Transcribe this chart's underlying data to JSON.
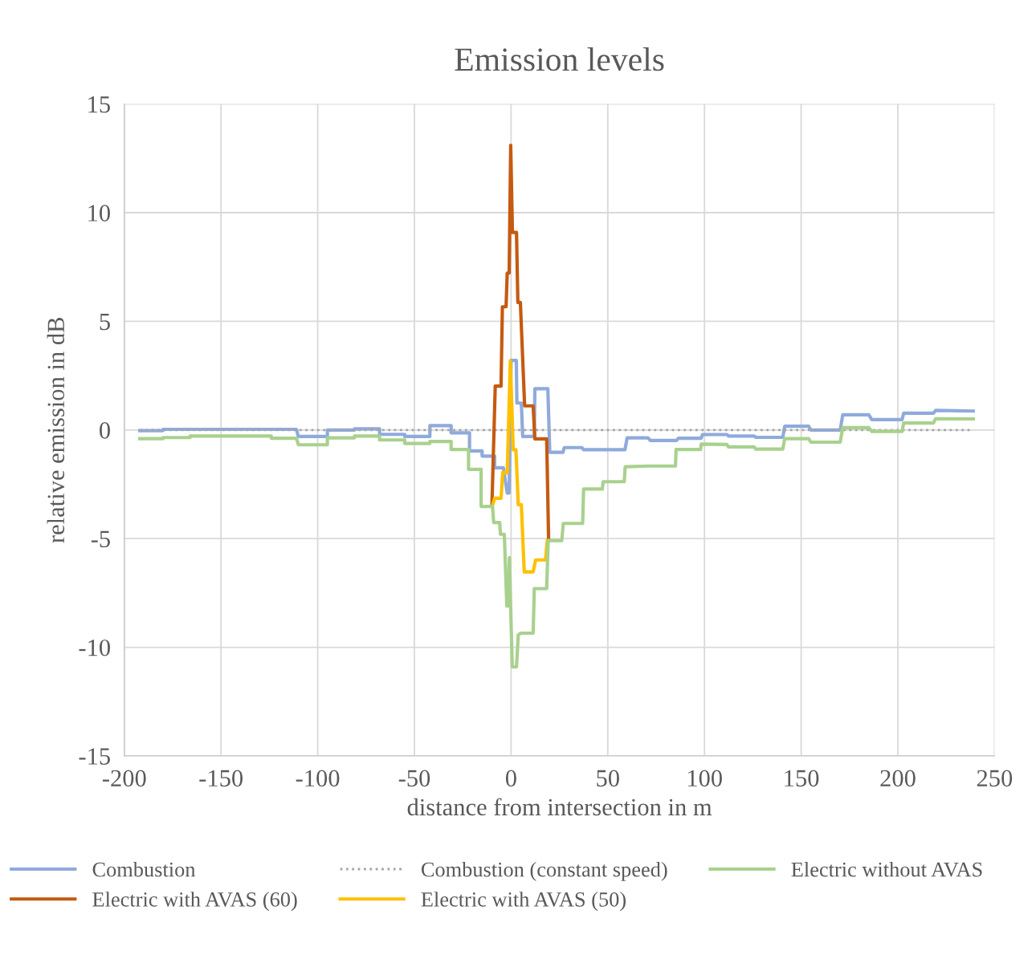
{
  "chart_data": {
    "type": "line",
    "title": "Emission levels",
    "xlabel": "distance from intersection in m",
    "ylabel": "relative emission in dB",
    "xlim": [
      -200,
      250
    ],
    "xticks": [
      -200,
      -150,
      -100,
      -50,
      0,
      50,
      100,
      150,
      200,
      250
    ],
    "ylim": [
      -15,
      15
    ],
    "yticks": [
      -15,
      -10,
      -5,
      0,
      5,
      10,
      15
    ],
    "grid": true,
    "legend": "bottom",
    "marker": "none",
    "series": [
      {
        "name": "Combustion",
        "color": "#8faadc",
        "line_style": "solid",
        "x": [
          -192,
          -180,
          -180,
          -111,
          -110,
          -95,
          -95,
          -81,
          -81,
          -68,
          -68,
          -55,
          -55,
          -42,
          -42,
          -31,
          -31,
          -21.5,
          -21.5,
          -15,
          -15,
          -8.5,
          -8.5,
          -4,
          -2,
          -1,
          0,
          2.7,
          3,
          5.3,
          6,
          12,
          12.3,
          19,
          20,
          26.8,
          27.5,
          36.6,
          37.5,
          58.9,
          60,
          70.8,
          72,
          85.6,
          86.5,
          98.3,
          99,
          111.6,
          112.5,
          125.7,
          126.5,
          140.5,
          141.5,
          153.9,
          155,
          170.2,
          171.5,
          185,
          186.5,
          202.2,
          203,
          218.4,
          219.5,
          239
        ],
        "values": [
          -0.03,
          -0.03,
          0.03,
          0.03,
          -0.3,
          -0.3,
          0,
          0,
          0.05,
          0.05,
          -0.2,
          -0.2,
          -0.3,
          -0.3,
          0.2,
          0.2,
          -0.13,
          -0.13,
          -0.96,
          -0.96,
          -1.2,
          -1.2,
          -1.74,
          -1.74,
          -2.9,
          -2.9,
          3.2,
          3.2,
          1.24,
          1.24,
          -0.3,
          -0.3,
          1.9,
          1.9,
          -1.03,
          -1.03,
          -0.81,
          -0.81,
          -0.91,
          -0.91,
          -0.36,
          -0.36,
          -0.48,
          -0.48,
          -0.38,
          -0.38,
          -0.21,
          -0.21,
          -0.28,
          -0.28,
          -0.34,
          -0.34,
          0.17,
          0.17,
          0,
          0,
          0.7,
          0.7,
          0.48,
          0.48,
          0.77,
          0.77,
          0.9,
          0.87
        ]
      },
      {
        "name": "Combustion (constant speed)",
        "color": "#a5a5a5",
        "line_style": "dotted",
        "x": [
          -192,
          239
        ],
        "values": [
          0,
          0
        ]
      },
      {
        "name": "Electric with AVAS (60)",
        "color": "#c55a11",
        "line_style": "solid",
        "x": [
          -9.9,
          -8.2,
          -5.2,
          -4.5,
          -2.6,
          -2,
          -1,
          -0.2,
          0.7,
          2.8,
          3.5,
          4.8,
          7,
          11.4,
          12.3,
          18.4,
          19.4
        ],
        "values": [
          -3.47,
          2.02,
          2.02,
          5.67,
          5.67,
          7.22,
          7.22,
          13.1,
          9.09,
          9.09,
          5.87,
          5.87,
          1.11,
          1.11,
          -0.41,
          -0.41,
          -5.04
        ]
      },
      {
        "name": "Electric with AVAS (50)",
        "color": "#ffc000",
        "line_style": "solid",
        "x": [
          -9.6,
          -8.5,
          -5.2,
          -4.3,
          -2,
          -0.4,
          1.1,
          2.5,
          3.7,
          5.3,
          6.8,
          11.4,
          12.7,
          17.8,
          18.7
        ],
        "values": [
          -3.47,
          -3.14,
          -3.14,
          -1.95,
          -1.98,
          3.18,
          -0.91,
          -0.91,
          -3.44,
          -3.44,
          -6.53,
          -6.53,
          -5.98,
          -5.98,
          -5.09
        ]
      },
      {
        "name": "Electric without AVAS",
        "color": "#a9d18e",
        "line_style": "solid",
        "x": [
          -192,
          -180,
          -180,
          -166,
          -166,
          -124,
          -124,
          -111,
          -110,
          -95,
          -95,
          -81,
          -81,
          -68,
          -68,
          -55,
          -55,
          -42,
          -42,
          -31,
          -31,
          -22,
          -22,
          -15.5,
          -15.5,
          -9.6,
          -9,
          -5.9,
          -5.5,
          -3.5,
          -2.2,
          -1.5,
          -0.9,
          0.6,
          2.8,
          3.7,
          5,
          11.4,
          12,
          18.4,
          19.2,
          26.2,
          27,
          37,
          37.5,
          47.2,
          47.6,
          58.5,
          59,
          70.7,
          85,
          85.3,
          98,
          98.3,
          111.6,
          112.5,
          125.7,
          126.5,
          140.5,
          141.5,
          153.9,
          155,
          170.2,
          171.5,
          185,
          186.5,
          202.2,
          203,
          218.4,
          219.5,
          239
        ],
        "values": [
          -0.4,
          -0.4,
          -0.35,
          -0.35,
          -0.28,
          -0.28,
          -0.38,
          -0.38,
          -0.68,
          -0.68,
          -0.36,
          -0.36,
          -0.28,
          -0.28,
          -0.46,
          -0.46,
          -0.62,
          -0.62,
          -0.53,
          -0.53,
          -0.9,
          -0.9,
          -1.81,
          -1.81,
          -3.52,
          -3.52,
          -4.26,
          -4.26,
          -4.8,
          -4.8,
          -8.1,
          -8.1,
          -5.87,
          -10.9,
          -10.9,
          -9.43,
          -9.35,
          -9.35,
          -7.3,
          -7.3,
          -5.09,
          -5.09,
          -4.3,
          -4.3,
          -2.72,
          -2.72,
          -2.38,
          -2.38,
          -1.69,
          -1.66,
          -1.66,
          -0.9,
          -0.9,
          -0.65,
          -0.67,
          -0.78,
          -0.78,
          -0.88,
          -0.88,
          -0.4,
          -0.4,
          -0.56,
          -0.56,
          0.11,
          0.11,
          -0.07,
          -0.07,
          0.32,
          0.32,
          0.52,
          0.51
        ]
      }
    ]
  }
}
